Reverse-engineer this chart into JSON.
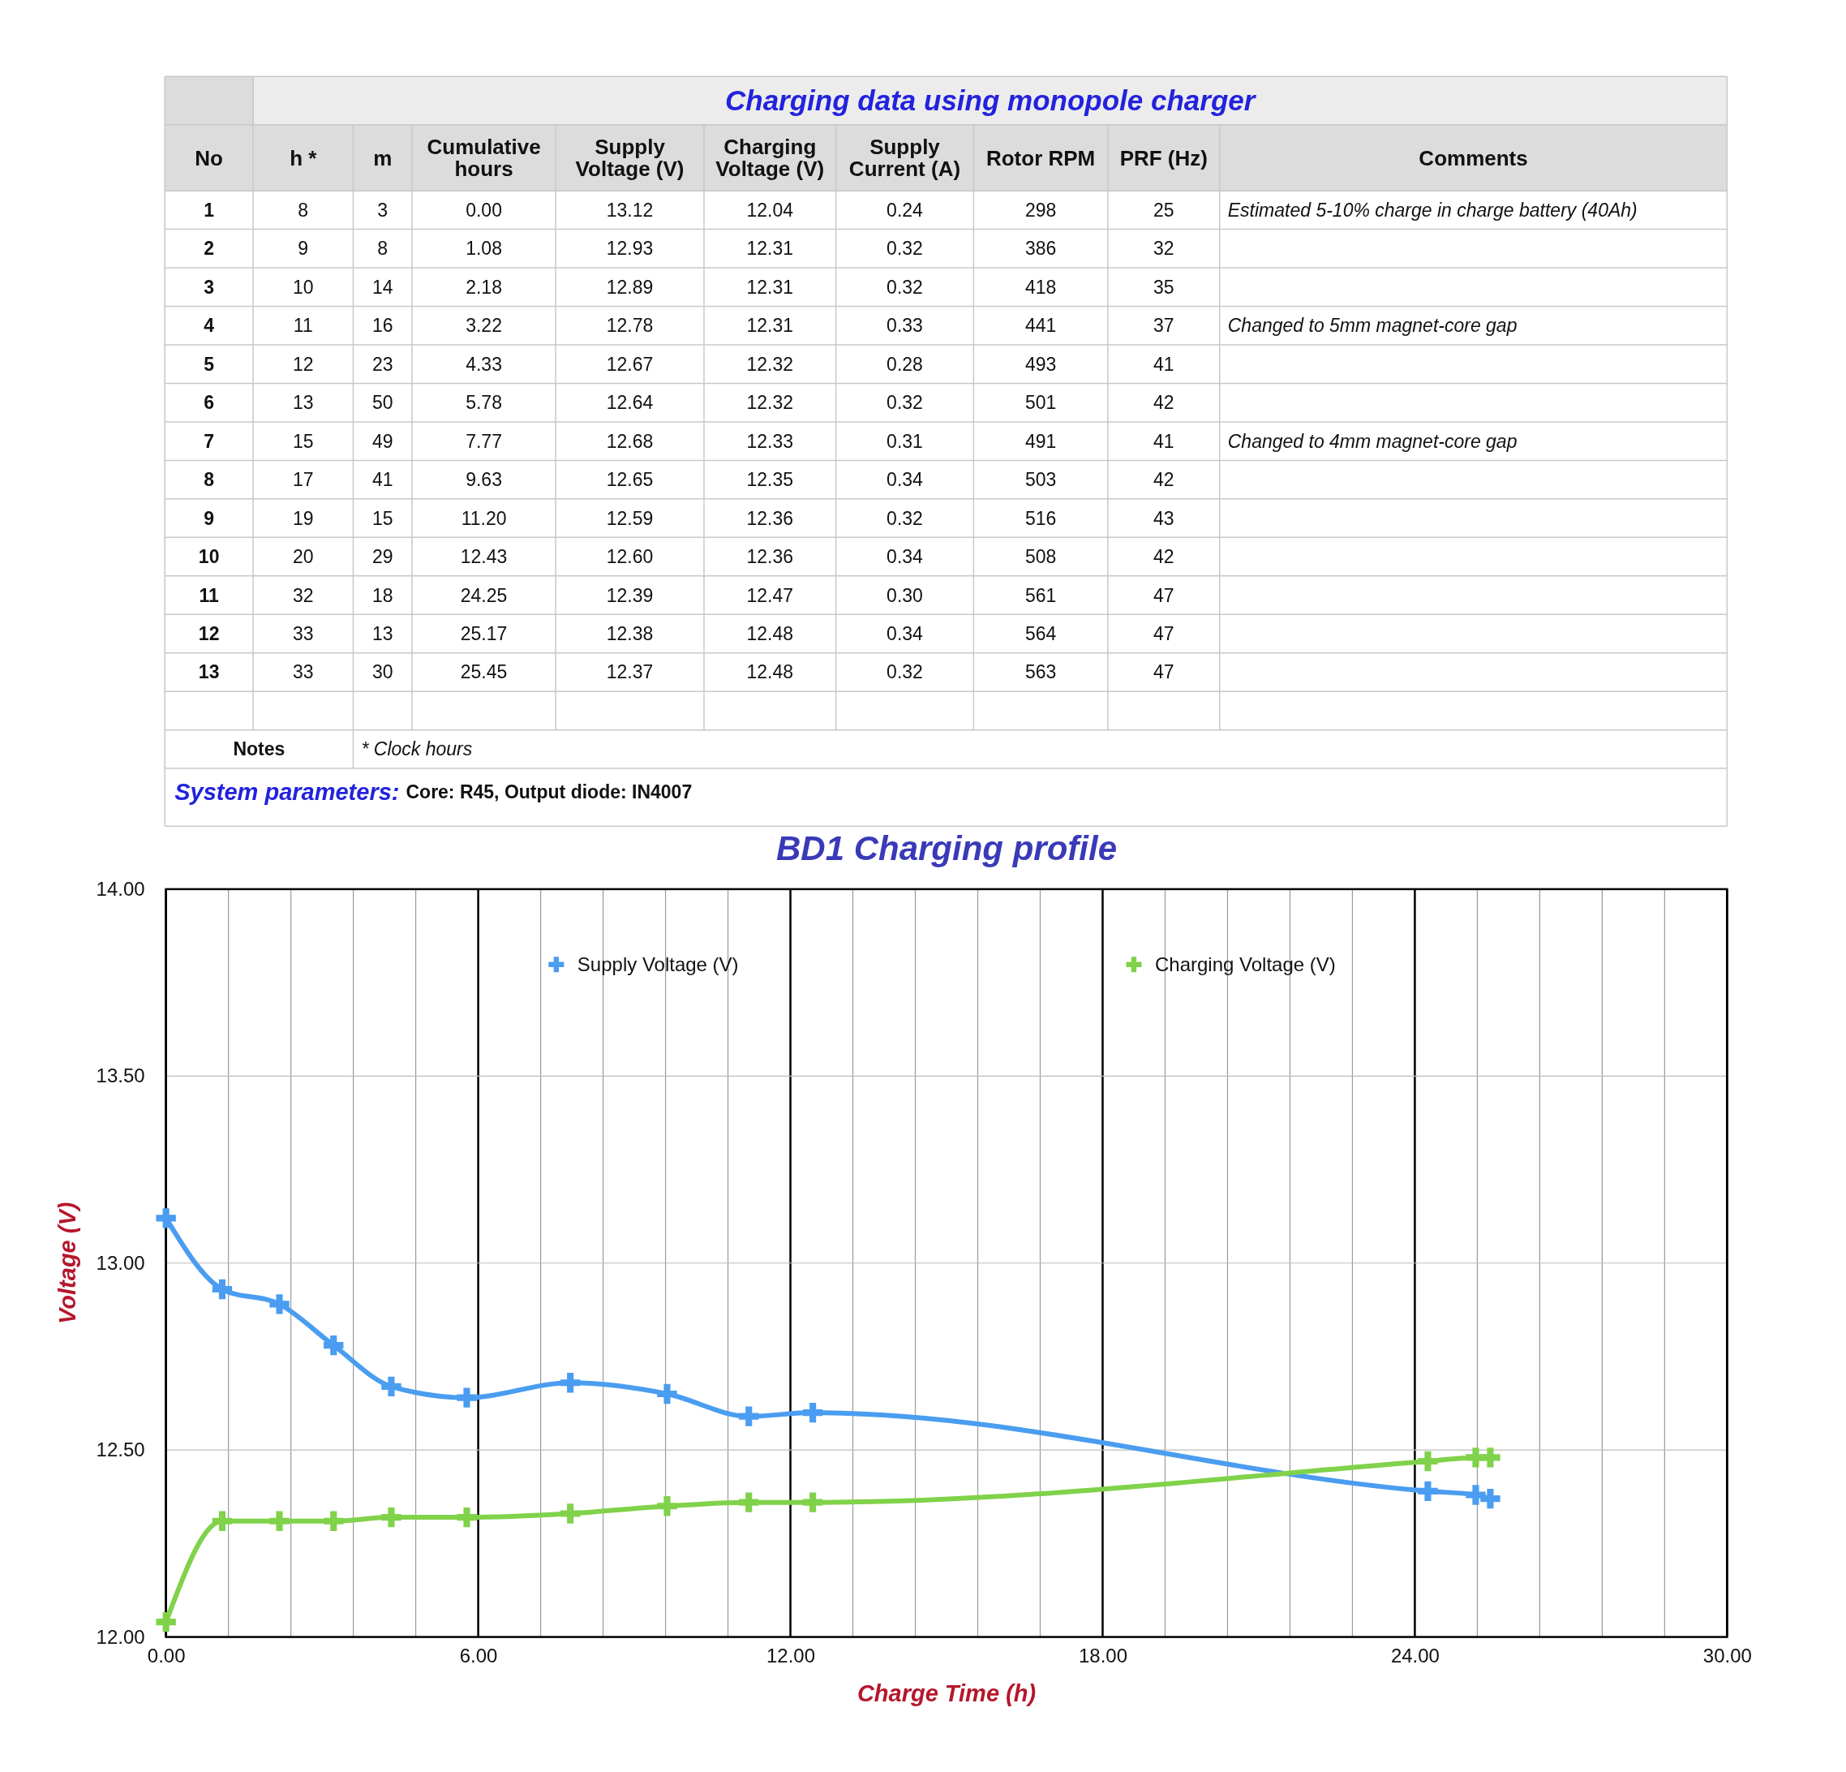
{
  "chart_data": [
    {
      "type": "other",
      "title": "Charging data using monopole charger",
      "categories": [
        "No",
        "h *",
        "m",
        "Cumulative hours",
        "Supply Voltage (V)",
        "Charging Voltage (V)",
        "Supply Current (A)",
        "Rotor RPM",
        "PRF (Hz)",
        "Comments"
      ],
      "cell_labels": [
        [
          "1",
          "8",
          "3",
          "0.00",
          "13.12",
          "12.04",
          "0.24",
          "298",
          "25",
          "Estimated 5-10% charge in charge battery (40Ah)"
        ],
        [
          "2",
          "9",
          "8",
          "1.08",
          "12.93",
          "12.31",
          "0.32",
          "386",
          "32",
          null
        ],
        [
          "3",
          "10",
          "14",
          "2.18",
          "12.89",
          "12.31",
          "0.32",
          "418",
          "35",
          null
        ],
        [
          "4",
          "11",
          "16",
          "3.22",
          "12.78",
          "12.31",
          "0.33",
          "441",
          "37",
          "Changed to 5mm magnet-core gap"
        ],
        [
          "5",
          "12",
          "23",
          "4.33",
          "12.67",
          "12.32",
          "0.28",
          "493",
          "41",
          null
        ],
        [
          "6",
          "13",
          "50",
          "5.78",
          "12.64",
          "12.32",
          "0.32",
          "501",
          "42",
          null
        ],
        [
          "7",
          "15",
          "49",
          "7.77",
          "12.68",
          "12.33",
          "0.31",
          "491",
          "41",
          "Changed to 4mm magnet-core gap"
        ],
        [
          "8",
          "17",
          "41",
          "9.63",
          "12.65",
          "12.35",
          "0.34",
          "503",
          "42",
          null
        ],
        [
          "9",
          "19",
          "15",
          "11.20",
          "12.59",
          "12.36",
          "0.32",
          "516",
          "43",
          null
        ],
        [
          "10",
          "20",
          "29",
          "12.43",
          "12.60",
          "12.36",
          "0.34",
          "508",
          "42",
          null
        ],
        [
          "11",
          "32",
          "18",
          "24.25",
          "12.39",
          "12.47",
          "0.30",
          "561",
          "47",
          null
        ],
        [
          "12",
          "33",
          "13",
          "25.17",
          "12.38",
          "12.48",
          "0.34",
          "564",
          "47",
          null
        ],
        [
          "13",
          "33",
          "30",
          "25.45",
          "12.37",
          "12.48",
          "0.32",
          "563",
          "47",
          null
        ],
        [
          null,
          null,
          null,
          null,
          null,
          null,
          null,
          null,
          null,
          null
        ]
      ],
      "annotations": [
        "Notes",
        "* Clock hours",
        "System parameters:",
        "Core: R45, Output diode: IN4007"
      ]
    },
    {
      "type": "line",
      "title": "BD1 Charging profile",
      "xlabel": "Charge Time (h)",
      "ylabel": "Voltage (V)",
      "x": [
        0,
        1.08,
        2.18,
        3.22,
        4.33,
        5.78,
        7.77,
        9.63,
        11.2,
        12.43,
        24.25,
        25.17,
        25.45
      ],
      "series": [
        {
          "name": "Supply Voltage (V)",
          "color": "#4a9df0",
          "values": [
            13.12,
            12.93,
            12.89,
            12.78,
            12.67,
            12.64,
            12.68,
            12.65,
            12.59,
            12.6,
            12.39,
            12.38,
            12.37
          ]
        },
        {
          "name": "Charging Voltage (V)",
          "color": "#80d24a",
          "values": [
            12.04,
            12.31,
            12.31,
            12.31,
            12.32,
            12.32,
            12.33,
            12.35,
            12.36,
            12.36,
            12.47,
            12.48,
            12.48
          ]
        }
      ],
      "xlim": [
        0,
        30
      ],
      "xticks": [
        {
          "value": 0,
          "label": "0.00"
        },
        {
          "value": 1.2,
          "label": null
        },
        {
          "value": 2.4,
          "label": null
        },
        {
          "value": 3.6,
          "label": null
        },
        {
          "value": 4.8,
          "label": null
        },
        {
          "value": 6,
          "label": "6.00"
        },
        {
          "value": 7.2,
          "label": null
        },
        {
          "value": 8.4,
          "label": null
        },
        {
          "value": 9.6,
          "label": null
        },
        {
          "value": 10.8,
          "label": null
        },
        {
          "value": 12,
          "label": "12.00"
        },
        {
          "value": 13.2,
          "label": null
        },
        {
          "value": 14.4,
          "label": null
        },
        {
          "value": 15.6,
          "label": null
        },
        {
          "value": 16.8,
          "label": null
        },
        {
          "value": 18,
          "label": "18.00"
        },
        {
          "value": 19.2,
          "label": null
        },
        {
          "value": 20.4,
          "label": null
        },
        {
          "value": 21.6,
          "label": null
        },
        {
          "value": 22.8,
          "label": null
        },
        {
          "value": 24,
          "label": "24.00"
        },
        {
          "value": 25.2,
          "label": null
        },
        {
          "value": 26.4,
          "label": null
        },
        {
          "value": 27.6,
          "label": null
        },
        {
          "value": 28.8,
          "label": null
        },
        {
          "value": 30,
          "label": "30.00"
        }
      ],
      "ylim": [
        12,
        14
      ],
      "yticks": [
        {
          "value": 12,
          "label": "12.00"
        },
        {
          "value": 12.5,
          "label": "12.50"
        },
        {
          "value": 13,
          "label": "13.00"
        },
        {
          "value": 13.5,
          "label": "13.50"
        },
        {
          "value": 14,
          "label": "14.00"
        }
      ],
      "grid": true,
      "legend": "top",
      "marker": "cross",
      "line_style": "solid"
    }
  ]
}
